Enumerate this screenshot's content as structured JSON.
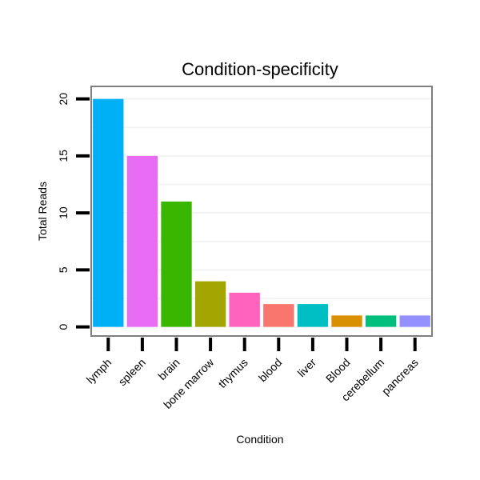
{
  "chart_data": {
    "type": "bar",
    "title": "Condition-specificity",
    "xlabel": "Condition",
    "ylabel": "Total Reads",
    "categories": [
      "lymph",
      "spleen",
      "brain",
      "bone marrow",
      "thymus",
      "blood",
      "liver",
      "Blood",
      "cerebellum",
      "pancreas"
    ],
    "values": [
      20,
      15,
      11,
      4,
      3,
      2,
      2,
      1,
      1,
      1
    ],
    "colors": [
      "#00B0F6",
      "#E76BF3",
      "#39B600",
      "#A3A500",
      "#FF62BC",
      "#F8766D",
      "#00BFC4",
      "#D89000",
      "#00BF7D",
      "#9590FF"
    ],
    "y_ticks": [
      0,
      5,
      10,
      15,
      20
    ],
    "ylim": [
      -0.8,
      21.1
    ],
    "grid": true,
    "legend": "none"
  }
}
